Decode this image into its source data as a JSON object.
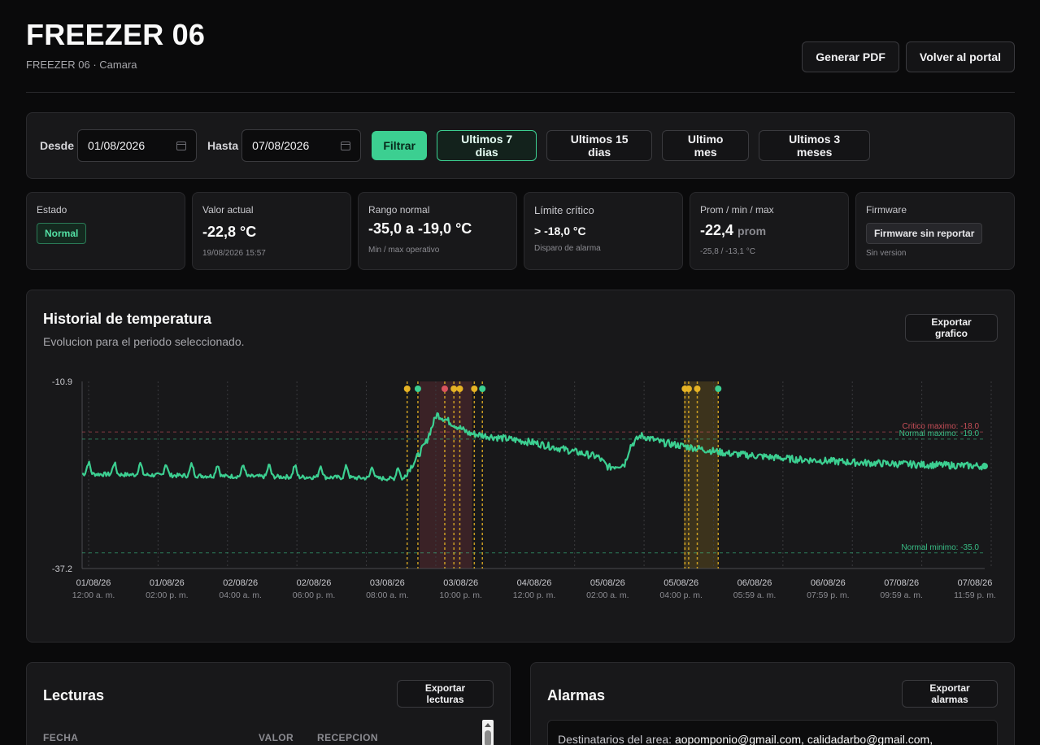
{
  "header": {
    "title": "FREEZER 06",
    "subtitle": "FREEZER 06 · Camara",
    "pdf_label": "Generar PDF",
    "portal_label": "Volver al portal"
  },
  "filter": {
    "from_label": "Desde",
    "from_value": "01/08/2026",
    "to_label": "Hasta",
    "to_value": "07/08/2026",
    "filter_label": "Filtrar",
    "ranges": [
      "Ultimos 7 dias",
      "Ultimos 15 dias",
      "Ultimo mes",
      "Ultimos 3 meses"
    ],
    "active_range": "Ultimos 7 dias"
  },
  "stats": {
    "estado": {
      "label": "Estado",
      "badge": "Normal"
    },
    "actual": {
      "label": "Valor actual",
      "value": "-22,8 °C",
      "sub": "19/08/2026 15:57"
    },
    "rango": {
      "label": "Rango normal",
      "value": "-35,0 a -19,0 °C",
      "sub": "Min / max operativo"
    },
    "limite": {
      "label": "Límite crítico",
      "value": "> -18,0 °C",
      "sub": "Disparo de alarma"
    },
    "prom": {
      "label": "Prom / min / max",
      "value": "-22,4",
      "value_suffix": "prom",
      "sub": "-25,8 / -13,1 °C"
    },
    "firmware": {
      "label": "Firmware",
      "badge": "Firmware sin reportar",
      "sub": "Sin version"
    }
  },
  "chart_panel": {
    "title": "Historial de temperatura",
    "subtitle": "Evolucion para el periodo seleccionado.",
    "export_label": "Exportar grafico"
  },
  "chart_data": {
    "type": "line",
    "ylim": [
      -37.2,
      -10.9
    ],
    "y_tick_labels": [
      "-10.9",
      "-37.2"
    ],
    "x_tick_labels": [
      {
        "date": "01/08/26",
        "time": "12:00 a. m."
      },
      {
        "date": "01/08/26",
        "time": "02:00 p. m."
      },
      {
        "date": "02/08/26",
        "time": "04:00 a. m."
      },
      {
        "date": "02/08/26",
        "time": "06:00 p. m."
      },
      {
        "date": "03/08/26",
        "time": "08:00 a. m."
      },
      {
        "date": "03/08/26",
        "time": "10:00 p. m."
      },
      {
        "date": "04/08/26",
        "time": "12:00 p. m."
      },
      {
        "date": "05/08/26",
        "time": "02:00 a. m."
      },
      {
        "date": "05/08/26",
        "time": "04:00 p. m."
      },
      {
        "date": "06/08/26",
        "time": "05:59 a. m."
      },
      {
        "date": "06/08/26",
        "time": "07:59 p. m."
      },
      {
        "date": "07/08/26",
        "time": "09:59 a. m."
      },
      {
        "date": "07/08/26",
        "time": "11:59 p. m."
      }
    ],
    "thresholds": [
      {
        "label": "Critico maximo: -18.0",
        "value": -18.0,
        "color": "#d9545e"
      },
      {
        "label": "Normal maximo: -19.0",
        "value": -19.0,
        "color": "#3ccf91"
      },
      {
        "label": "Normal minimo: -35.0",
        "value": -35.0,
        "color": "#3ccf91"
      }
    ],
    "series_color": "#3ccf91",
    "series_hours": [
      0,
      24,
      48,
      60,
      62,
      64,
      66,
      72,
      84,
      96,
      98,
      101,
      102,
      104,
      108,
      120,
      132,
      144,
      156,
      168
    ],
    "series_values": [
      -23.5,
      -23.8,
      -24.0,
      -24.2,
      -22.0,
      -19.5,
      -15.5,
      -18.2,
      -19.5,
      -21.5,
      -23.0,
      -22.5,
      -20.0,
      -18.5,
      -19.5,
      -21.0,
      -21.8,
      -22.3,
      -22.6,
      -22.8
    ],
    "marker_hours": [
      60.5,
      62.5,
      67.5,
      69.2,
      70.3,
      73.0,
      74.5,
      112.2,
      112.9,
      114.5,
      118.4
    ],
    "marker_colors": [
      "#e6b325",
      "#3ccf91",
      "#d9545e",
      "#e6b325",
      "#e6b325",
      "#e6b325",
      "#3ccf91",
      "#e6b325",
      "#e6b325",
      "#e6b325",
      "#3ccf91"
    ],
    "alert_bands": [
      {
        "from": 62.8,
        "to": 72.6,
        "color": "#d9545e"
      },
      {
        "from": 112.0,
        "to": 118.4,
        "color": "#e6b325"
      }
    ]
  },
  "lecturas": {
    "title": "Lecturas",
    "export_label": "Exportar lecturas",
    "columns": [
      "FECHA",
      "VALOR",
      "RECEPCION"
    ]
  },
  "alarmas": {
    "title": "Alarmas",
    "export_label": "Exportar alarmas",
    "dest_label": "Destinatarios del area:",
    "dest_value": "aopomponio@gmail.com, calidadarbo@gmail.com,"
  }
}
